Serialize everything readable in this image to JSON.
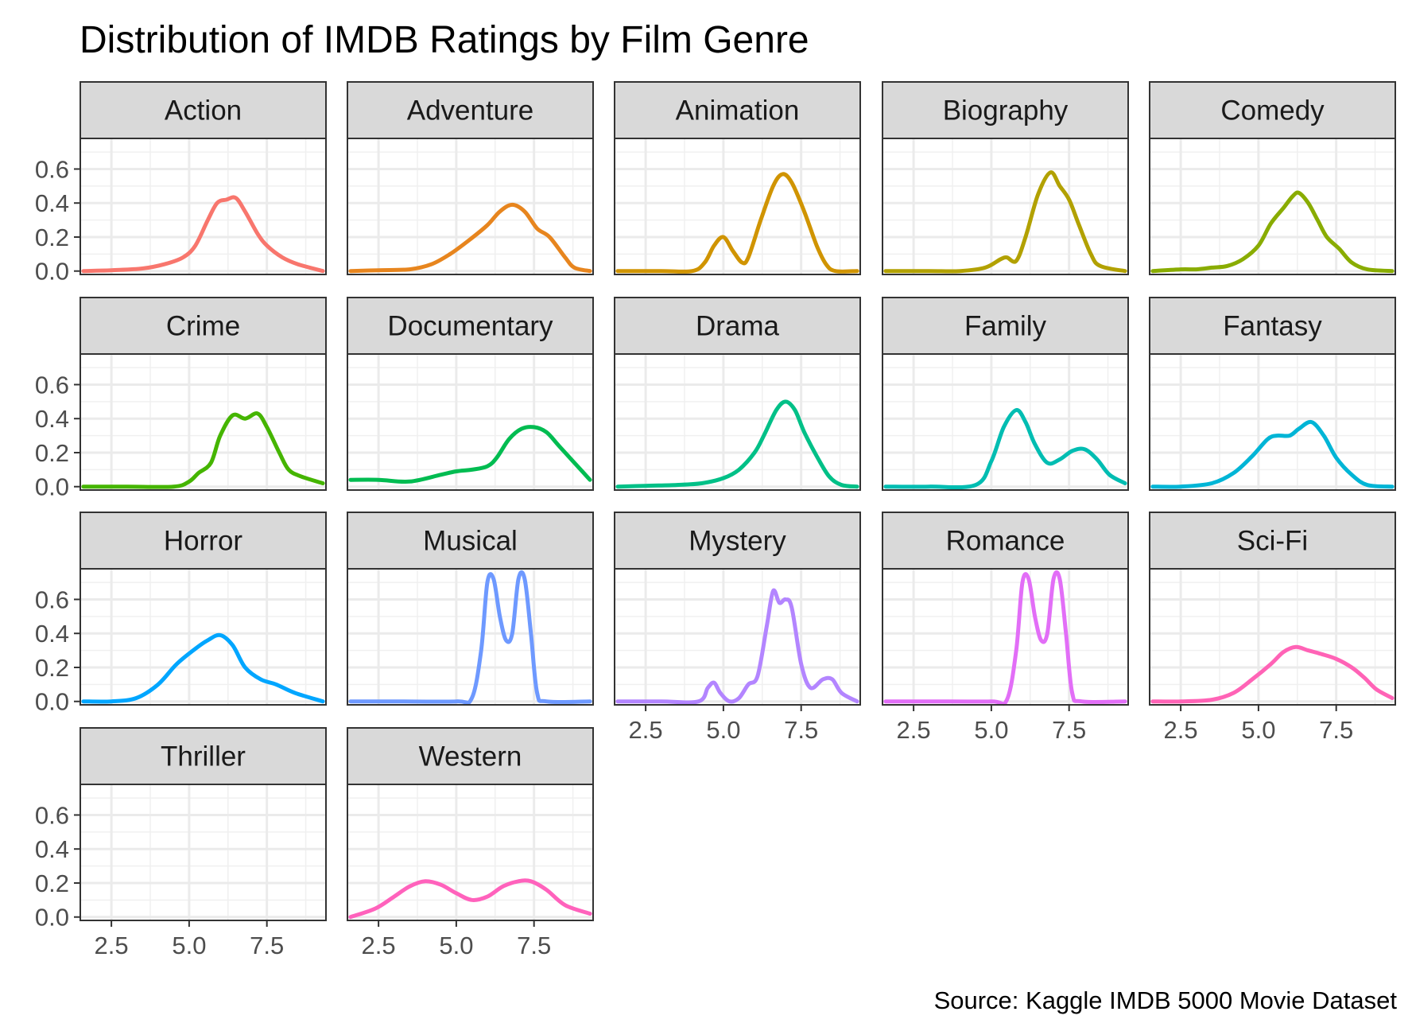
{
  "chart_data": {
    "type": "area",
    "title": "Distribution of IMDB Ratings by Film Genre",
    "caption": "Source: Kaggle IMDB 5000 Movie Dataset",
    "xlabel": "",
    "ylabel": "",
    "xlim": [
      1.5,
      9.4
    ],
    "ylim": [
      -0.02,
      0.78
    ],
    "x_ticks": [
      2.5,
      5.0,
      7.5
    ],
    "x_tick_labels": [
      "2.5",
      "5.0",
      "7.5"
    ],
    "y_ticks": [
      0.0,
      0.2,
      0.4,
      0.6
    ],
    "y_tick_labels": [
      "0.0",
      "0.2",
      "0.4",
      "0.6"
    ],
    "grid": true,
    "facet_columns": 5,
    "series": [
      {
        "name": "Action",
        "color": "#F8766D",
        "points": [
          [
            1.6,
            0.0
          ],
          [
            2.5,
            0.005
          ],
          [
            3.5,
            0.015
          ],
          [
            4.2,
            0.04
          ],
          [
            4.8,
            0.08
          ],
          [
            5.2,
            0.15
          ],
          [
            5.6,
            0.3
          ],
          [
            5.9,
            0.4
          ],
          [
            6.2,
            0.42
          ],
          [
            6.5,
            0.43
          ],
          [
            6.8,
            0.35
          ],
          [
            7.2,
            0.22
          ],
          [
            7.5,
            0.15
          ],
          [
            8.0,
            0.08
          ],
          [
            8.5,
            0.04
          ],
          [
            9.3,
            0.0
          ]
        ]
      },
      {
        "name": "Adventure",
        "color": "#E7851E",
        "points": [
          [
            1.6,
            0.0
          ],
          [
            2.5,
            0.005
          ],
          [
            3.5,
            0.01
          ],
          [
            4.2,
            0.04
          ],
          [
            4.8,
            0.1
          ],
          [
            5.4,
            0.18
          ],
          [
            6.0,
            0.27
          ],
          [
            6.4,
            0.35
          ],
          [
            6.8,
            0.39
          ],
          [
            7.2,
            0.35
          ],
          [
            7.6,
            0.25
          ],
          [
            8.0,
            0.2
          ],
          [
            8.5,
            0.08
          ],
          [
            8.8,
            0.02
          ],
          [
            9.3,
            0.0
          ]
        ]
      },
      {
        "name": "Animation",
        "color": "#D09400",
        "points": [
          [
            1.6,
            0.0
          ],
          [
            3.0,
            0.0
          ],
          [
            4.0,
            0.0
          ],
          [
            4.4,
            0.05
          ],
          [
            4.7,
            0.15
          ],
          [
            5.0,
            0.2
          ],
          [
            5.3,
            0.12
          ],
          [
            5.6,
            0.05
          ],
          [
            5.8,
            0.08
          ],
          [
            6.2,
            0.3
          ],
          [
            6.6,
            0.5
          ],
          [
            6.9,
            0.57
          ],
          [
            7.2,
            0.52
          ],
          [
            7.6,
            0.35
          ],
          [
            8.0,
            0.15
          ],
          [
            8.3,
            0.04
          ],
          [
            8.6,
            0.0
          ],
          [
            9.3,
            0.0
          ]
        ]
      },
      {
        "name": "Biography",
        "color": "#B2A100",
        "points": [
          [
            1.6,
            0.0
          ],
          [
            3.0,
            0.0
          ],
          [
            4.0,
            0.0
          ],
          [
            4.8,
            0.02
          ],
          [
            5.3,
            0.07
          ],
          [
            5.5,
            0.08
          ],
          [
            5.8,
            0.06
          ],
          [
            6.1,
            0.2
          ],
          [
            6.5,
            0.45
          ],
          [
            6.9,
            0.58
          ],
          [
            7.2,
            0.5
          ],
          [
            7.5,
            0.42
          ],
          [
            7.8,
            0.28
          ],
          [
            8.2,
            0.1
          ],
          [
            8.5,
            0.03
          ],
          [
            9.3,
            0.0
          ]
        ]
      },
      {
        "name": "Comedy",
        "color": "#89AC00",
        "points": [
          [
            1.6,
            0.0
          ],
          [
            2.5,
            0.01
          ],
          [
            3.0,
            0.01
          ],
          [
            3.5,
            0.02
          ],
          [
            4.0,
            0.03
          ],
          [
            4.5,
            0.07
          ],
          [
            5.0,
            0.15
          ],
          [
            5.4,
            0.28
          ],
          [
            5.8,
            0.37
          ],
          [
            6.1,
            0.44
          ],
          [
            6.3,
            0.46
          ],
          [
            6.6,
            0.4
          ],
          [
            6.9,
            0.3
          ],
          [
            7.2,
            0.2
          ],
          [
            7.6,
            0.13
          ],
          [
            8.0,
            0.05
          ],
          [
            8.5,
            0.01
          ],
          [
            9.3,
            0.0
          ]
        ]
      },
      {
        "name": "Crime",
        "color": "#45B500",
        "points": [
          [
            1.6,
            0.0
          ],
          [
            3.0,
            0.0
          ],
          [
            4.5,
            0.0
          ],
          [
            5.0,
            0.03
          ],
          [
            5.3,
            0.08
          ],
          [
            5.7,
            0.14
          ],
          [
            6.0,
            0.3
          ],
          [
            6.4,
            0.42
          ],
          [
            6.8,
            0.4
          ],
          [
            7.2,
            0.43
          ],
          [
            7.5,
            0.35
          ],
          [
            7.9,
            0.2
          ],
          [
            8.2,
            0.1
          ],
          [
            8.6,
            0.06
          ],
          [
            9.3,
            0.02
          ]
        ]
      },
      {
        "name": "Documentary",
        "color": "#00BC51",
        "points": [
          [
            1.6,
            0.04
          ],
          [
            2.5,
            0.04
          ],
          [
            3.5,
            0.03
          ],
          [
            4.5,
            0.07
          ],
          [
            5.0,
            0.09
          ],
          [
            5.5,
            0.1
          ],
          [
            6.0,
            0.12
          ],
          [
            6.3,
            0.17
          ],
          [
            6.7,
            0.28
          ],
          [
            7.1,
            0.34
          ],
          [
            7.5,
            0.35
          ],
          [
            7.9,
            0.32
          ],
          [
            8.3,
            0.24
          ],
          [
            8.8,
            0.14
          ],
          [
            9.3,
            0.04
          ]
        ]
      },
      {
        "name": "Drama",
        "color": "#00C087",
        "points": [
          [
            1.6,
            0.0
          ],
          [
            2.5,
            0.005
          ],
          [
            3.5,
            0.01
          ],
          [
            4.3,
            0.02
          ],
          [
            5.0,
            0.05
          ],
          [
            5.5,
            0.1
          ],
          [
            6.0,
            0.2
          ],
          [
            6.3,
            0.3
          ],
          [
            6.7,
            0.45
          ],
          [
            7.0,
            0.5
          ],
          [
            7.3,
            0.45
          ],
          [
            7.6,
            0.32
          ],
          [
            8.0,
            0.18
          ],
          [
            8.4,
            0.06
          ],
          [
            8.8,
            0.01
          ],
          [
            9.3,
            0.0
          ]
        ]
      },
      {
        "name": "Family",
        "color": "#00BDB2",
        "points": [
          [
            1.6,
            0.0
          ],
          [
            3.0,
            0.0
          ],
          [
            4.5,
            0.01
          ],
          [
            5.0,
            0.15
          ],
          [
            5.4,
            0.35
          ],
          [
            5.8,
            0.45
          ],
          [
            6.1,
            0.38
          ],
          [
            6.4,
            0.25
          ],
          [
            6.8,
            0.14
          ],
          [
            7.2,
            0.16
          ],
          [
            7.6,
            0.21
          ],
          [
            8.0,
            0.22
          ],
          [
            8.4,
            0.16
          ],
          [
            8.8,
            0.07
          ],
          [
            9.3,
            0.02
          ]
        ]
      },
      {
        "name": "Fantasy",
        "color": "#00B5D6",
        "points": [
          [
            1.6,
            0.0
          ],
          [
            2.5,
            0.0
          ],
          [
            3.5,
            0.02
          ],
          [
            4.2,
            0.08
          ],
          [
            4.8,
            0.18
          ],
          [
            5.3,
            0.28
          ],
          [
            5.6,
            0.3
          ],
          [
            6.0,
            0.3
          ],
          [
            6.3,
            0.34
          ],
          [
            6.7,
            0.38
          ],
          [
            7.1,
            0.3
          ],
          [
            7.5,
            0.17
          ],
          [
            8.0,
            0.07
          ],
          [
            8.5,
            0.01
          ],
          [
            9.3,
            0.0
          ]
        ]
      },
      {
        "name": "Horror",
        "color": "#00A6FF",
        "points": [
          [
            1.6,
            0.0
          ],
          [
            2.5,
            0.0
          ],
          [
            3.3,
            0.02
          ],
          [
            4.0,
            0.1
          ],
          [
            4.6,
            0.22
          ],
          [
            5.2,
            0.31
          ],
          [
            5.6,
            0.36
          ],
          [
            6.0,
            0.39
          ],
          [
            6.4,
            0.33
          ],
          [
            6.8,
            0.2
          ],
          [
            7.3,
            0.13
          ],
          [
            7.8,
            0.1
          ],
          [
            8.4,
            0.05
          ],
          [
            9.3,
            0.0
          ]
        ]
      },
      {
        "name": "Musical",
        "color": "#6E99FF",
        "points": [
          [
            1.6,
            0.0
          ],
          [
            3.0,
            0.0
          ],
          [
            5.0,
            0.0
          ],
          [
            5.5,
            0.02
          ],
          [
            5.8,
            0.3
          ],
          [
            6.0,
            0.7
          ],
          [
            6.2,
            0.72
          ],
          [
            6.4,
            0.5
          ],
          [
            6.6,
            0.36
          ],
          [
            6.8,
            0.4
          ],
          [
            7.0,
            0.72
          ],
          [
            7.2,
            0.72
          ],
          [
            7.4,
            0.4
          ],
          [
            7.6,
            0.05
          ],
          [
            7.9,
            0.0
          ],
          [
            9.3,
            0.0
          ]
        ]
      },
      {
        "name": "Mystery",
        "color": "#B385FF",
        "points": [
          [
            1.6,
            0.0
          ],
          [
            3.0,
            0.0
          ],
          [
            4.2,
            0.0
          ],
          [
            4.5,
            0.08
          ],
          [
            4.7,
            0.11
          ],
          [
            4.9,
            0.05
          ],
          [
            5.2,
            0.0
          ],
          [
            5.5,
            0.02
          ],
          [
            5.8,
            0.1
          ],
          [
            6.1,
            0.15
          ],
          [
            6.4,
            0.45
          ],
          [
            6.6,
            0.65
          ],
          [
            6.8,
            0.58
          ],
          [
            7.0,
            0.6
          ],
          [
            7.2,
            0.55
          ],
          [
            7.5,
            0.22
          ],
          [
            7.8,
            0.08
          ],
          [
            8.2,
            0.13
          ],
          [
            8.5,
            0.13
          ],
          [
            8.8,
            0.05
          ],
          [
            9.3,
            0.0
          ]
        ]
      },
      {
        "name": "Romance",
        "color": "#E26EF7",
        "points": [
          [
            1.6,
            0.0
          ],
          [
            3.0,
            0.0
          ],
          [
            5.0,
            0.0
          ],
          [
            5.5,
            0.01
          ],
          [
            5.8,
            0.3
          ],
          [
            6.0,
            0.7
          ],
          [
            6.2,
            0.72
          ],
          [
            6.4,
            0.5
          ],
          [
            6.6,
            0.36
          ],
          [
            6.8,
            0.4
          ],
          [
            7.0,
            0.72
          ],
          [
            7.2,
            0.72
          ],
          [
            7.4,
            0.4
          ],
          [
            7.6,
            0.05
          ],
          [
            7.9,
            0.0
          ],
          [
            9.3,
            0.0
          ]
        ]
      },
      {
        "name": "Sci-Fi",
        "color": "#FF63B6",
        "points": [
          [
            1.6,
            0.0
          ],
          [
            2.5,
            0.0
          ],
          [
            3.5,
            0.01
          ],
          [
            4.2,
            0.05
          ],
          [
            4.8,
            0.13
          ],
          [
            5.4,
            0.22
          ],
          [
            5.8,
            0.29
          ],
          [
            6.2,
            0.32
          ],
          [
            6.6,
            0.3
          ],
          [
            7.0,
            0.28
          ],
          [
            7.5,
            0.25
          ],
          [
            8.0,
            0.2
          ],
          [
            8.4,
            0.14
          ],
          [
            8.8,
            0.07
          ],
          [
            9.3,
            0.02
          ]
        ]
      },
      {
        "name": "Thriller",
        "color": "#FF62BC",
        "points": []
      },
      {
        "name": "Western",
        "color": "#FF62BC",
        "points": [
          [
            1.6,
            0.0
          ],
          [
            2.4,
            0.05
          ],
          [
            3.0,
            0.12
          ],
          [
            3.5,
            0.18
          ],
          [
            4.0,
            0.21
          ],
          [
            4.5,
            0.19
          ],
          [
            5.0,
            0.14
          ],
          [
            5.5,
            0.1
          ],
          [
            6.0,
            0.12
          ],
          [
            6.5,
            0.18
          ],
          [
            7.0,
            0.21
          ],
          [
            7.4,
            0.21
          ],
          [
            7.9,
            0.16
          ],
          [
            8.5,
            0.07
          ],
          [
            9.3,
            0.02
          ]
        ]
      }
    ]
  }
}
